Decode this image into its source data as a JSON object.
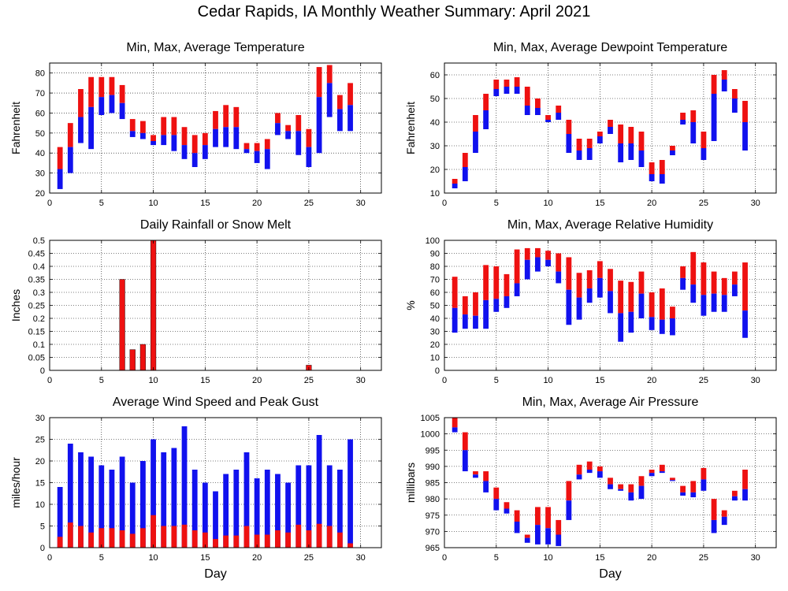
{
  "title": "Cedar Rapids, IA Monthly Weather Summary: April 2021",
  "colors": {
    "red": "#ee1111",
    "blue": "#1111ee",
    "grid": "#000000"
  },
  "chart_data": [
    {
      "id": "temp",
      "type": "bar",
      "title": "Min, Max, Average Temperature",
      "ylabel": "Fahrenheit",
      "xlabel": "",
      "xlim": [
        0,
        32
      ],
      "ylim": [
        20,
        85
      ],
      "xticks": [
        0,
        5,
        10,
        15,
        20,
        25,
        30
      ],
      "yticks": [
        20,
        30,
        40,
        50,
        60,
        70,
        80
      ],
      "grid": true,
      "x": [
        1,
        2,
        3,
        4,
        5,
        6,
        7,
        8,
        9,
        10,
        11,
        12,
        13,
        14,
        15,
        16,
        17,
        18,
        19,
        20,
        21,
        22,
        23,
        24,
        25,
        26,
        27,
        28,
        29
      ],
      "min": [
        22,
        30,
        45,
        42,
        59,
        60,
        57,
        48,
        47,
        44,
        44,
        41,
        37,
        33,
        37,
        43,
        43,
        42,
        40,
        35,
        32,
        49,
        47,
        39,
        33,
        40,
        58,
        51,
        51
      ],
      "avg": [
        32,
        43,
        58,
        63,
        68,
        69,
        65,
        51,
        50,
        46,
        49,
        49,
        44,
        40,
        44,
        52,
        53,
        53,
        42,
        41,
        42,
        55,
        51,
        51,
        43,
        68,
        75,
        62,
        64
      ],
      "max": [
        43,
        55,
        72,
        78,
        78,
        78,
        74,
        57,
        56,
        49,
        58,
        58,
        53,
        49,
        50,
        61,
        64,
        63,
        45,
        45,
        47,
        60,
        54,
        59,
        52,
        83,
        84,
        69,
        75
      ]
    },
    {
      "id": "dewpoint",
      "type": "bar",
      "title": "Min, Max, Average Dewpoint Temperature",
      "ylabel": "Fahrenheit",
      "xlabel": "",
      "xlim": [
        0,
        32
      ],
      "ylim": [
        10,
        65
      ],
      "xticks": [
        0,
        5,
        10,
        15,
        20,
        25,
        30
      ],
      "yticks": [
        10,
        20,
        30,
        40,
        50,
        60
      ],
      "grid": true,
      "x": [
        1,
        2,
        3,
        4,
        5,
        6,
        7,
        8,
        9,
        10,
        11,
        12,
        13,
        14,
        15,
        16,
        17,
        18,
        19,
        20,
        21,
        22,
        23,
        24,
        25,
        26,
        27,
        28,
        29
      ],
      "min": [
        12,
        15,
        27,
        37,
        51,
        52,
        52,
        43,
        43,
        40,
        41,
        27,
        24,
        24,
        31,
        35,
        23,
        24,
        21,
        15,
        14,
        26,
        39,
        31,
        24,
        32,
        53,
        44,
        28
      ],
      "avg": [
        14,
        21,
        36,
        45,
        54,
        55,
        55,
        47,
        46,
        41,
        44,
        35,
        28,
        29,
        34,
        38,
        31,
        31,
        28,
        18,
        18,
        28,
        41,
        40,
        29,
        52,
        58,
        50,
        40
      ],
      "max": [
        16,
        27,
        43,
        52,
        58,
        58,
        59,
        55,
        50,
        43,
        47,
        41,
        33,
        33,
        36,
        41,
        39,
        38,
        36,
        23,
        24,
        30,
        44,
        45,
        36,
        60,
        62,
        54,
        49
      ]
    },
    {
      "id": "rain",
      "type": "bar",
      "title": "Daily Rainfall or Snow Melt",
      "ylabel": "Inches",
      "xlabel": "",
      "xlim": [
        0,
        32
      ],
      "ylim": [
        0,
        0.5
      ],
      "xticks": [
        0,
        5,
        10,
        15,
        20,
        25,
        30
      ],
      "yticks": [
        0,
        0.05,
        0.1,
        0.15,
        0.2,
        0.25,
        0.3,
        0.35,
        0.4,
        0.45,
        0.5
      ],
      "ytick_labels": [
        "0",
        "0.05",
        "0.1",
        "0.15",
        "0.2",
        "0.25",
        "0.3",
        "0.35",
        "0.4",
        "0.45",
        "0.5"
      ],
      "grid": true,
      "x": [
        7,
        8,
        9,
        10,
        25
      ],
      "values": [
        0.35,
        0.08,
        0.1,
        0.5,
        0.02
      ]
    },
    {
      "id": "humidity",
      "type": "bar",
      "title": "Min, Max, Average Relative Humidity",
      "ylabel": "%",
      "xlabel": "",
      "xlim": [
        0,
        32
      ],
      "ylim": [
        0,
        100
      ],
      "xticks": [
        0,
        5,
        10,
        15,
        20,
        25,
        30
      ],
      "yticks": [
        0,
        10,
        20,
        30,
        40,
        50,
        60,
        70,
        80,
        90,
        100
      ],
      "grid": true,
      "x": [
        1,
        2,
        3,
        4,
        5,
        6,
        7,
        8,
        9,
        10,
        11,
        12,
        13,
        14,
        15,
        16,
        17,
        18,
        19,
        20,
        21,
        22,
        23,
        24,
        25,
        26,
        27,
        28,
        29
      ],
      "min": [
        29,
        32,
        32,
        32,
        45,
        48,
        57,
        70,
        76,
        80,
        67,
        35,
        39,
        52,
        56,
        44,
        22,
        29,
        40,
        31,
        28,
        27,
        62,
        52,
        42,
        45,
        45,
        57,
        25
      ],
      "avg": [
        48,
        43,
        42,
        54,
        55,
        57,
        67,
        85,
        87,
        85,
        76,
        62,
        56,
        63,
        71,
        61,
        44,
        45,
        59,
        41,
        39,
        40,
        71,
        66,
        58,
        59,
        58,
        66,
        46
      ],
      "max": [
        72,
        57,
        60,
        81,
        80,
        74,
        93,
        94,
        94,
        92,
        90,
        87,
        75,
        77,
        84,
        78,
        69,
        68,
        76,
        60,
        63,
        49,
        80,
        91,
        83,
        76,
        71,
        76,
        83
      ]
    },
    {
      "id": "wind",
      "type": "bar",
      "title": "Average Wind Speed and Peak Gust",
      "ylabel": "miles/hour",
      "xlabel": "Day",
      "xlim": [
        0,
        32
      ],
      "ylim": [
        0,
        30
      ],
      "xticks": [
        0,
        5,
        10,
        15,
        20,
        25,
        30
      ],
      "yticks": [
        0,
        5,
        10,
        15,
        20,
        25,
        30
      ],
      "grid": true,
      "x": [
        1,
        2,
        3,
        4,
        5,
        6,
        7,
        8,
        9,
        10,
        11,
        12,
        13,
        14,
        15,
        16,
        17,
        18,
        19,
        20,
        21,
        22,
        23,
        24,
        25,
        26,
        27,
        28,
        29
      ],
      "gust": [
        14,
        24,
        22,
        21,
        19,
        18,
        21,
        15,
        20,
        25,
        22,
        23,
        28,
        18,
        15,
        13,
        17,
        18,
        22,
        16,
        18,
        17,
        15,
        19,
        19,
        26,
        19,
        18,
        25
      ],
      "avg": [
        2.5,
        5.8,
        5,
        3.5,
        4.5,
        4.5,
        4,
        3.2,
        4.5,
        7.5,
        5,
        5,
        5.3,
        4,
        3.5,
        2,
        2.8,
        2.8,
        5,
        3,
        3,
        4,
        3.5,
        5.3,
        4,
        5.5,
        5,
        3.5,
        1
      ]
    },
    {
      "id": "pressure",
      "type": "bar",
      "title": "Min, Max, Average Air Pressure",
      "ylabel": "millibars",
      "xlabel": "Day",
      "xlim": [
        0,
        32
      ],
      "ylim": [
        965,
        1005
      ],
      "xticks": [
        0,
        5,
        10,
        15,
        20,
        25,
        30
      ],
      "yticks": [
        965,
        970,
        975,
        980,
        985,
        990,
        995,
        1000,
        1005
      ],
      "grid": true,
      "x": [
        1,
        2,
        3,
        4,
        5,
        6,
        7,
        8,
        9,
        10,
        11,
        12,
        13,
        14,
        15,
        16,
        17,
        18,
        19,
        20,
        21,
        22,
        23,
        24,
        25,
        26,
        27,
        28,
        29
      ],
      "min": [
        1000.5,
        988.5,
        986.5,
        982,
        976.5,
        975.5,
        969.5,
        966.5,
        966,
        966,
        965.5,
        973.5,
        986,
        988,
        986.5,
        983,
        982.5,
        979.5,
        980,
        987,
        988,
        985.5,
        981,
        980.5,
        982.5,
        969.5,
        972,
        979.5,
        979.5
      ],
      "avg": [
        1002,
        995,
        987.5,
        985.5,
        980,
        977,
        973,
        968,
        972,
        971,
        969,
        979.5,
        987.5,
        989,
        988.5,
        984.5,
        983,
        982,
        984,
        988,
        988.5,
        985.8,
        982,
        982,
        986,
        973.5,
        974.5,
        980.8,
        983
      ],
      "max": [
        1005,
        1000.5,
        988.5,
        988.5,
        983.5,
        979,
        976.5,
        969,
        977.5,
        977.5,
        973.5,
        985.5,
        990.5,
        991.5,
        990,
        986.5,
        984.5,
        984.5,
        987,
        989,
        990.5,
        986.5,
        984,
        985.5,
        989.5,
        980,
        976.5,
        982.5,
        989
      ]
    }
  ]
}
